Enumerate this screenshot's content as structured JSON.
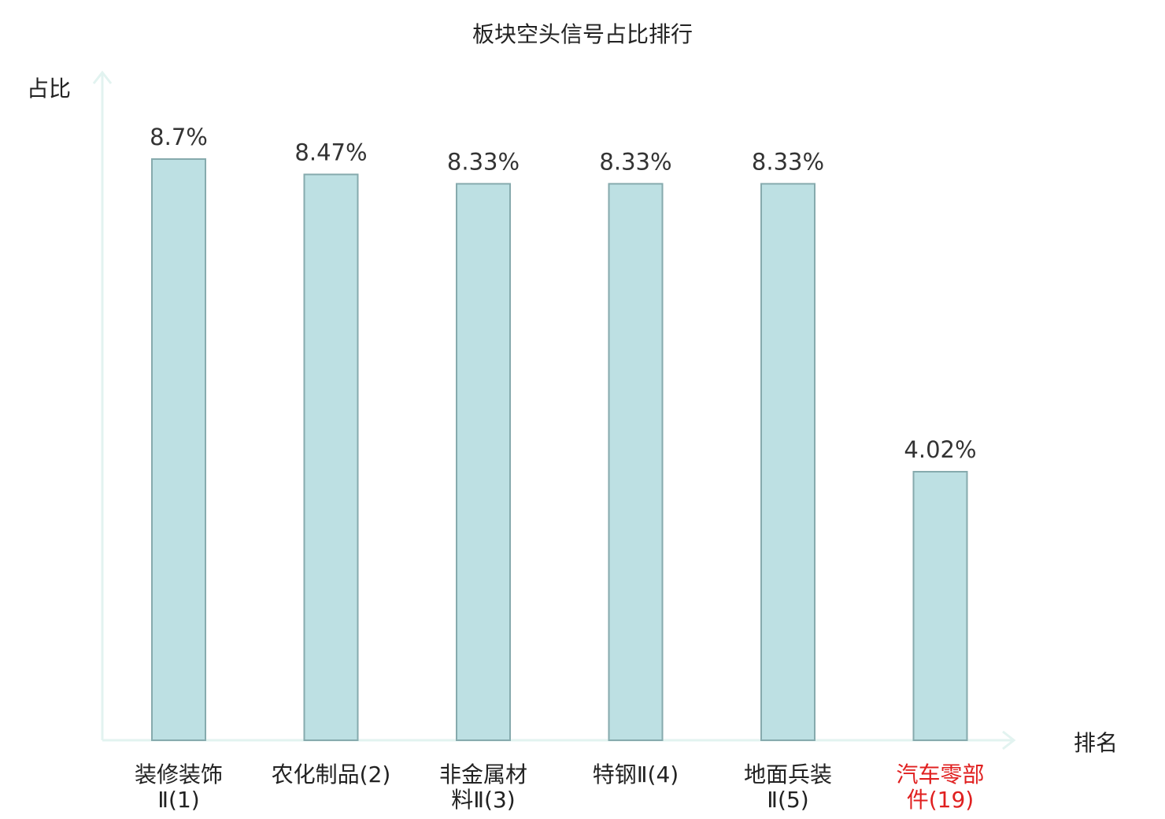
{
  "chart_data": {
    "type": "bar",
    "title": "板块空头信号占比排行",
    "ylabel": "占比",
    "xlabel": "排名",
    "categories": [
      {
        "lines": [
          "装修装饰",
          "Ⅱ(1)"
        ],
        "highlight": false
      },
      {
        "lines": [
          "农化制品(2)"
        ],
        "highlight": false
      },
      {
        "lines": [
          "非金属材",
          "料Ⅱ(3)"
        ],
        "highlight": false
      },
      {
        "lines": [
          "特钢Ⅱ(4)"
        ],
        "highlight": false
      },
      {
        "lines": [
          "地面兵装",
          "Ⅱ(5)"
        ],
        "highlight": false
      },
      {
        "lines": [
          "汽车零部",
          "件(19)"
        ],
        "highlight": true
      }
    ],
    "values": [
      8.7,
      8.47,
      8.33,
      8.33,
      8.33,
      4.02
    ],
    "value_labels": [
      "8.7%",
      "8.47%",
      "8.33%",
      "8.33%",
      "8.33%",
      "4.02%"
    ],
    "unit": "%",
    "ylim": [
      0,
      10
    ],
    "grid": false,
    "legend": "none",
    "colors": {
      "bar_fill": "#bde0e3",
      "bar_stroke": "#86aaad",
      "axis": "#e2f3f0",
      "highlight_label": "#e02020"
    }
  }
}
